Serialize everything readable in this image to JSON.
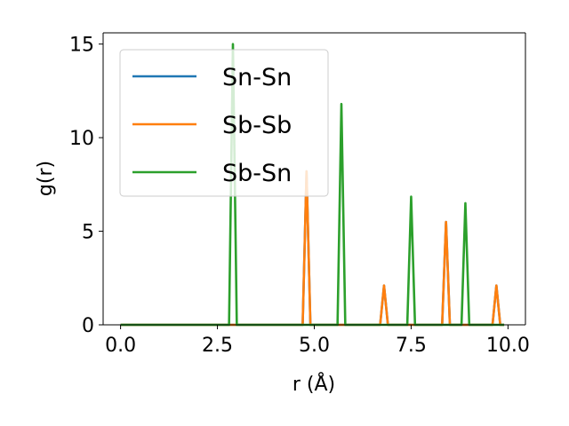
{
  "chart_data": {
    "type": "line",
    "xlabel": "r (Å)",
    "ylabel": "g(r)",
    "xlim": [
      -0.45,
      10.45
    ],
    "ylim": [
      0,
      15.6
    ],
    "x_ticks": [
      0.0,
      2.5,
      5.0,
      7.5,
      10.0
    ],
    "x_tick_labels": [
      "0.0",
      "2.5",
      "5.0",
      "7.5",
      "10.0"
    ],
    "y_ticks": [
      0,
      5,
      10,
      15
    ],
    "y_tick_labels": [
      "0",
      "5",
      "10",
      "15"
    ],
    "grid": false,
    "legend_position": "top-left",
    "series": [
      {
        "name": "Sn-Sn",
        "color": "#1f77b4",
        "x": [
          0.0,
          2.8,
          2.9,
          3.0,
          4.7,
          4.8,
          4.9,
          5.6,
          5.7,
          5.8,
          6.7,
          6.8,
          6.9,
          7.4,
          7.5,
          7.6,
          8.3,
          8.4,
          8.5,
          8.8,
          8.9,
          9.0,
          9.6,
          9.7,
          9.8,
          9.9
        ],
        "y": [
          0,
          0,
          0,
          0,
          0,
          8.2,
          0,
          0,
          0,
          0,
          0,
          2.1,
          0,
          0,
          0,
          0,
          0,
          5.5,
          0,
          0,
          0,
          0,
          0,
          2.1,
          0,
          0
        ]
      },
      {
        "name": "Sb-Sb",
        "color": "#ff7f0e",
        "x": [
          0.0,
          2.8,
          2.9,
          3.0,
          4.7,
          4.8,
          4.9,
          5.6,
          5.7,
          5.8,
          6.7,
          6.8,
          6.9,
          7.4,
          7.5,
          7.6,
          8.3,
          8.4,
          8.5,
          8.8,
          8.9,
          9.0,
          9.6,
          9.7,
          9.8,
          9.9
        ],
        "y": [
          0,
          0,
          0,
          0,
          0,
          8.2,
          0,
          0,
          0,
          0,
          0,
          2.1,
          0,
          0,
          0,
          0,
          0,
          5.5,
          0,
          0,
          0,
          0,
          0,
          2.1,
          0,
          0
        ]
      },
      {
        "name": "Sb-Sn",
        "color": "#2ca02c",
        "x": [
          0.0,
          2.8,
          2.9,
          3.0,
          4.7,
          4.8,
          4.9,
          5.6,
          5.7,
          5.8,
          6.7,
          6.8,
          6.9,
          7.4,
          7.5,
          7.6,
          8.3,
          8.4,
          8.5,
          8.8,
          8.9,
          9.0,
          9.6,
          9.7,
          9.8,
          9.9
        ],
        "y": [
          0,
          0,
          15.0,
          0,
          0,
          0,
          0,
          0,
          11.8,
          0,
          0,
          0,
          0,
          0,
          6.85,
          0,
          0,
          0,
          0,
          0,
          6.5,
          0,
          0,
          0,
          0,
          0
        ]
      }
    ]
  }
}
